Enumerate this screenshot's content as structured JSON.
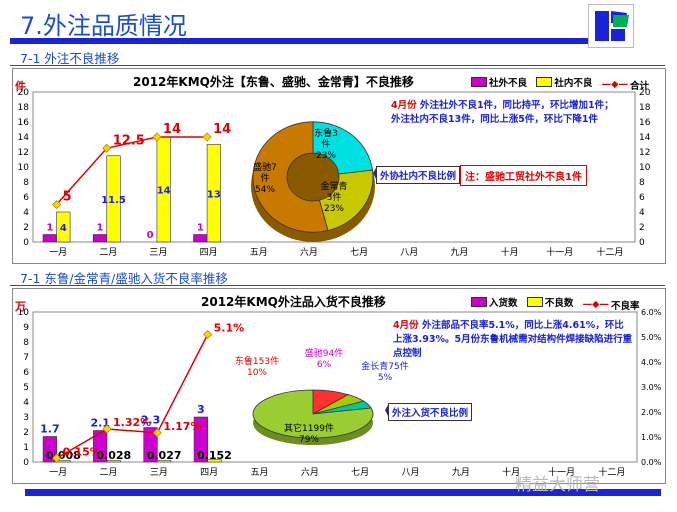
{
  "page": {
    "title": "7.外注品质情况",
    "section1": "7-1  外注不良推移",
    "section2": "7-1  东鲁/金常青/盛驰入货不良率推移",
    "watermark": "精益大师营"
  },
  "chart1": {
    "title": "2012年KMQ外注【东鲁、盛驰、金常青】不良推移",
    "unit": "件",
    "legend": [
      "社外不良",
      "社内不良",
      "合计"
    ],
    "note_prefix": "4月份",
    "note": "外注社外不良1件，同比持平，环比增加1件；外注社内不良13件，同比上涨5件，环比下降1件",
    "callout": "外协社内不良比例",
    "redbox": "注：盛驰工贸社外不良1件",
    "pie_labels": [
      {
        "name": "东鲁3件",
        "pct": "23%"
      },
      {
        "name": "金常青3件",
        "pct": "23%"
      },
      {
        "name": "盛驰7件",
        "pct": "54%"
      }
    ]
  },
  "chart2": {
    "title": "2012年KMQ外注品入货不良推移",
    "unit": "万",
    "legend": [
      "入货数",
      "不良数",
      "不良率"
    ],
    "note_prefix": "4月份",
    "note": "外注部品不良率5.1%，同比上涨4.61%，环比上涨3.93%。5月份东鲁机械需对结构件焊接缺陷进行重点控制",
    "callout": "外注入货不良比例",
    "pie_labels": [
      {
        "name": "东鲁153件",
        "pct": "10%"
      },
      {
        "name": "盛驰94件",
        "pct": "6%"
      },
      {
        "name": "金长青75件",
        "pct": "5%"
      },
      {
        "name": "其它1199件",
        "pct": "79%"
      }
    ]
  },
  "chart_data": [
    {
      "type": "bar",
      "title": "2012年KMQ外注【东鲁、盛驰、金常青】不良推移",
      "ylabel": "件",
      "categories": [
        "一月",
        "二月",
        "三月",
        "四月",
        "五月",
        "六月",
        "七月",
        "八月",
        "九月",
        "十月",
        "十一月",
        "十二月"
      ],
      "ylim": [
        0,
        20
      ],
      "series": [
        {
          "name": "社外不良",
          "kind": "bar",
          "color": "#cc00cc",
          "values": [
            1,
            1,
            0,
            1,
            null,
            null,
            null,
            null,
            null,
            null,
            null,
            null
          ]
        },
        {
          "name": "社内不良",
          "kind": "bar",
          "color": "#ffff00",
          "values": [
            4,
            11.5,
            14,
            13,
            null,
            null,
            null,
            null,
            null,
            null,
            null,
            null
          ]
        },
        {
          "name": "合计",
          "kind": "line",
          "color": "#e00000",
          "values": [
            5,
            12.5,
            14,
            14,
            null,
            null,
            null,
            null,
            null,
            null,
            null,
            null
          ]
        }
      ],
      "pie": {
        "labels": [
          "东鲁3件",
          "金常青3件",
          "盛驰7件"
        ],
        "values": [
          23,
          23,
          54
        ],
        "colors": [
          "#00e0e0",
          "#c8c800",
          "#c87a00"
        ]
      }
    },
    {
      "type": "bar",
      "title": "2012年KMQ外注品入货不良推移",
      "ylabel": "万",
      "categories": [
        "一月",
        "二月",
        "三月",
        "四月",
        "五月",
        "六月",
        "七月",
        "八月",
        "九月",
        "十月",
        "十一月",
        "十二月"
      ],
      "ylim": [
        0,
        10
      ],
      "y2lim": [
        0,
        6
      ],
      "series": [
        {
          "name": "入货数",
          "kind": "bar",
          "color": "#cc00cc",
          "values": [
            1.7,
            2.1,
            2.3,
            3.0,
            null,
            null,
            null,
            null,
            null,
            null,
            null,
            null
          ]
        },
        {
          "name": "不良数",
          "kind": "bar",
          "color": "#ffff00",
          "values": [
            0.008,
            0.028,
            0.027,
            0.152,
            null,
            null,
            null,
            null,
            null,
            null,
            null,
            null
          ]
        },
        {
          "name": "不良率",
          "kind": "line",
          "axis": "right",
          "unit": "%",
          "color": "#e00000",
          "values": [
            0.15,
            1.32,
            1.17,
            5.1,
            null,
            null,
            null,
            null,
            null,
            null,
            null,
            null
          ]
        }
      ],
      "pie": {
        "labels": [
          "东鲁153件",
          "盛驰94件",
          "金长青75件",
          "其它1199件"
        ],
        "values": [
          10,
          6,
          5,
          79
        ],
        "colors": [
          "#ff3030",
          "#a8c800",
          "#00c8a0",
          "#9acd32"
        ]
      }
    }
  ]
}
